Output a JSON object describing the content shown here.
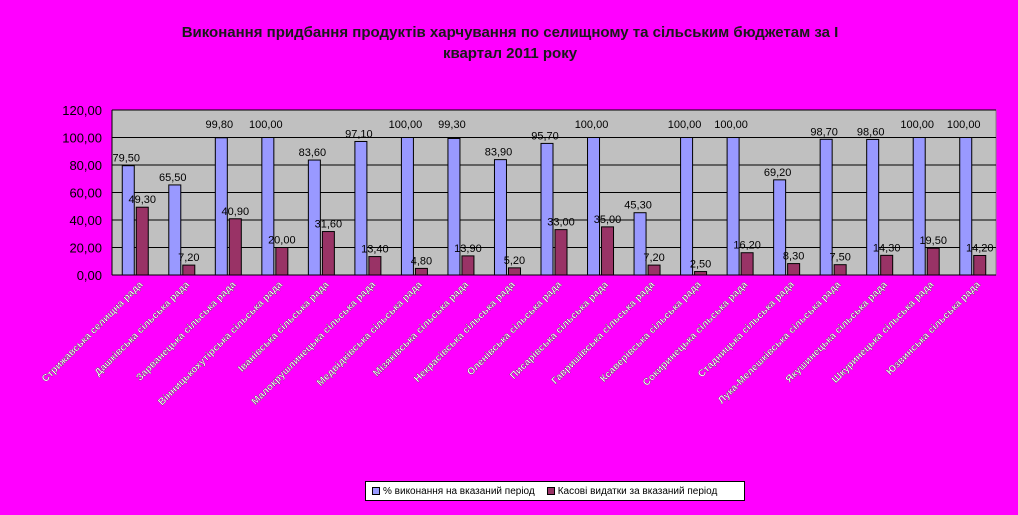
{
  "chart_data": {
    "type": "bar",
    "title_lines": [
      "Виконання  придбання продуктів харчування по селищному та сільським бюджетам за І",
      "квартал 2011 року"
    ],
    "xlabel": "",
    "ylabel": "",
    "ylim": [
      0,
      120
    ],
    "yticks": [
      "0,00",
      "20,00",
      "40,00",
      "60,00",
      "80,00",
      "100,00",
      "120,00"
    ],
    "grid": true,
    "legend_position": "bottom",
    "colors": {
      "background": "#FF00FF",
      "plot_area": "#C0C0C0",
      "series1": "#9999FF",
      "series2": "#993366"
    },
    "categories": [
      "Стрижавська селищна рада",
      "Дашківська сільська рада",
      "Зарванецька сільська рада",
      "Вінницькохутірська сільська рада",
      "Іванівська сільська рада",
      "Малокрушлинецька сільська рада",
      "Медвідківська сільська рада",
      "Мізяківська сільська рада",
      "Некрасівська сільська рада",
      "Оленівська сільська рада",
      "Писарівська сільська рада",
      "Гавришівська сільська рада",
      "Ксаверівська сільська рада",
      "Сокиринецька сільська рада",
      "Стадницька сільська рада",
      "Лука-Мелешківська сільська рада",
      "Якушинецька сільська рада",
      "Шкуринецька сільська рада",
      "Юзвинська сільська рада"
    ],
    "series": [
      {
        "name": "% виконання на вказаний період",
        "values": [
          79.5,
          65.5,
          99.8,
          100.0,
          83.6,
          97.1,
          100.0,
          99.3,
          83.9,
          95.7,
          100.0,
          45.3,
          100.0,
          100.0,
          69.2,
          98.7,
          98.6,
          100.0,
          100.0
        ],
        "labels": [
          "79,50",
          "65,50",
          "99,80",
          "100,00",
          "83,60",
          "97,10",
          "100,00",
          "99,30",
          "83,90",
          "95,70",
          "100,00",
          "45,30",
          "100,00",
          "100,00",
          "69,20",
          "98,70",
          "98,60",
          "100,00",
          "100,00"
        ]
      },
      {
        "name": "Касові видатки за вказаний період",
        "values": [
          49.3,
          7.2,
          40.9,
          20.0,
          31.6,
          13.4,
          4.8,
          13.9,
          5.2,
          33.0,
          35.0,
          7.2,
          2.5,
          16.2,
          8.3,
          7.5,
          14.3,
          19.5,
          14.2
        ],
        "labels": [
          "49,30",
          "7,20",
          "40,90",
          "20,00",
          "31,60",
          "13,40",
          "4,80",
          "13,90",
          "5,20",
          "33,00",
          "35,00",
          "7,20",
          "2,50",
          "16,20",
          "8,30",
          "7,50",
          "14,30",
          "19,50",
          "14,20"
        ]
      }
    ]
  }
}
